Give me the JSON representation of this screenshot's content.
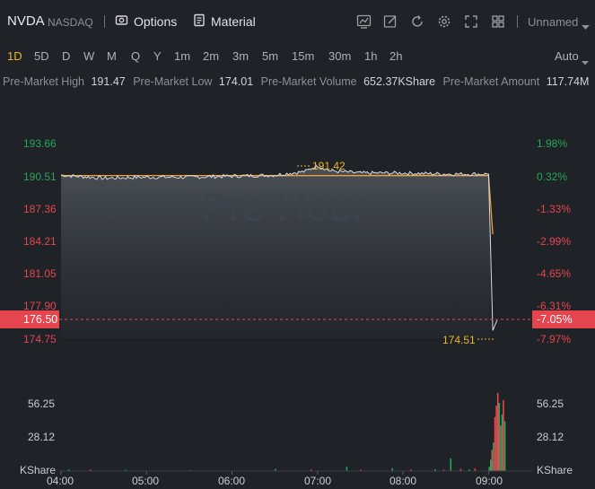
{
  "header": {
    "symbol": "NVDA",
    "exchange": "NASDAQ",
    "options_label": "Options",
    "material_label": "Material",
    "layout_name": "Unnamed"
  },
  "timeframes": [
    "1D",
    "5D",
    "D",
    "W",
    "M",
    "Q",
    "Y",
    "1m",
    "2m",
    "3m",
    "5m",
    "15m",
    "30m",
    "1h",
    "2h"
  ],
  "active_timeframe": "1D",
  "scale_mode": "Auto",
  "stats": {
    "high_label": "Pre-Market High",
    "high_value": "191.47",
    "low_label": "Pre-Market Low",
    "low_value": "174.01",
    "volume_label": "Pre-Market Volume",
    "volume_value": "652.37KShare",
    "amount_label": "Pre-Market Amount",
    "amount_value": "117.74M"
  },
  "chart": {
    "watermark": "Pre Hour",
    "price_ticks": [
      "193.66",
      "190.51",
      "187.36",
      "184.21",
      "181.05",
      "177.90",
      "174.75"
    ],
    "pct_ticks": [
      "1.98%",
      "0.32%",
      "-1.33%",
      "-2.99%",
      "-4.65%",
      "-6.31%",
      "-7.97%"
    ],
    "current_price": "176.50",
    "current_pct": "-7.05%",
    "high_marker": "191.42",
    "low_marker": "174.51",
    "volume_ticks": [
      "56.25",
      "28.12"
    ],
    "volume_unit": "KShare",
    "time_ticks": [
      "04:00",
      "05:00",
      "06:00",
      "07:00",
      "08:00",
      "09:00"
    ],
    "colors": {
      "up": "#26a65b",
      "down": "#e5454f",
      "price_line": "#d9dce0",
      "avg_line": "#e8a33a",
      "marker": "#f0b429",
      "background": "#1f2227"
    }
  },
  "chart_data": {
    "type": "line",
    "title": "",
    "x": [
      "04:00",
      "04:30",
      "05:00",
      "05:30",
      "06:00",
      "06:30",
      "07:00",
      "07:30",
      "08:00",
      "08:30",
      "09:00",
      "09:03",
      "09:06"
    ],
    "series": [
      {
        "values": [
          190.6,
          190.3,
          190.4,
          190.4,
          190.5,
          190.6,
          191.1,
          190.8,
          190.8,
          190.7,
          190.7,
          175.5,
          176.5
        ]
      }
    ],
    "ylim": [
      174.75,
      193.66
    ],
    "volume_ylim": [
      0,
      60
    ]
  }
}
